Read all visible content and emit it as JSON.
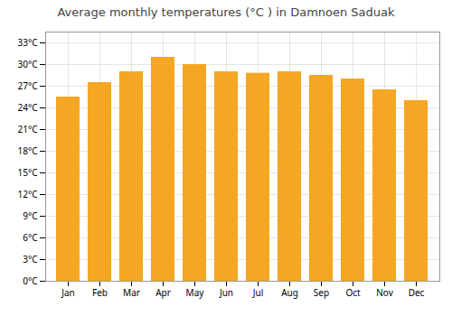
{
  "chart_data": {
    "type": "bar",
    "title": "Average monthly temperatures (°C ) in Damnoen Saduak",
    "categories": [
      "Jan",
      "Feb",
      "Mar",
      "Apr",
      "May",
      "Jun",
      "Jul",
      "Aug",
      "Sep",
      "Oct",
      "Nov",
      "Dec"
    ],
    "values": [
      25.5,
      27.5,
      29.0,
      31.0,
      30.0,
      29.0,
      28.8,
      29.0,
      28.5,
      28.0,
      26.5,
      25.0
    ],
    "color": "#F5A623",
    "ylim": [
      0,
      34.5
    ],
    "yticks": [
      {
        "value": 0,
        "label": "0°C"
      },
      {
        "value": 3,
        "label": "3°C"
      },
      {
        "value": 6,
        "label": "6°C"
      },
      {
        "value": 9,
        "label": "9°C"
      },
      {
        "value": 12,
        "label": "12°C"
      },
      {
        "value": 15,
        "label": "15°C"
      },
      {
        "value": 18,
        "label": "18°C"
      },
      {
        "value": 21,
        "label": "21°C"
      },
      {
        "value": 24,
        "label": "24°C"
      },
      {
        "value": 27,
        "label": "27°C"
      },
      {
        "value": 30,
        "label": "30°C"
      },
      {
        "value": 33,
        "label": "33°C"
      }
    ],
    "grid": true
  }
}
